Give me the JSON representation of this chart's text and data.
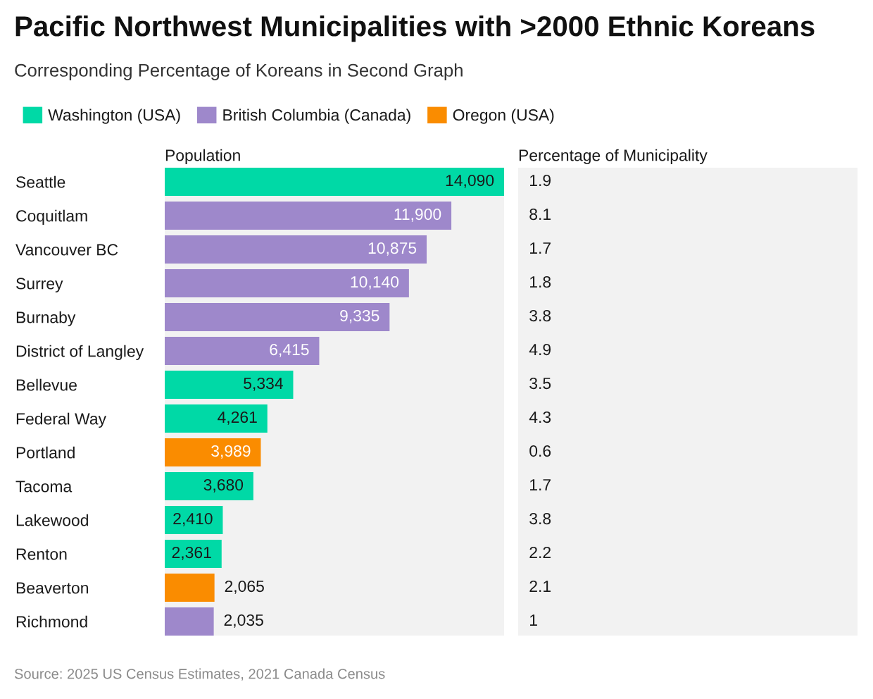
{
  "chart_data": [
    {
      "type": "bar",
      "orientation": "horizontal",
      "title": "Pacific Northwest Municipalities with >2000 Ethnic Koreans",
      "subtitle": "Corresponding Percentage of Koreans in Second Graph",
      "xlabel": "Population",
      "categories": [
        "Seattle",
        "Coquitlam",
        "Vancouver BC",
        "Surrey",
        "Burnaby",
        "District of Langley",
        "Bellevue",
        "Federal Way",
        "Portland",
        "Tacoma",
        "Lakewood",
        "Renton",
        "Beaverton",
        "Richmond"
      ],
      "series": [
        {
          "name": "Washington (USA)",
          "color": "#00d9a6",
          "values": [
            14090,
            null,
            null,
            null,
            null,
            null,
            5334,
            4261,
            null,
            3680,
            2410,
            2361,
            null,
            null
          ],
          "value_labels": [
            "14,090",
            null,
            null,
            null,
            null,
            null,
            "5,334",
            "4,261",
            null,
            "3,680",
            "2,410",
            "2,361",
            null,
            null
          ]
        },
        {
          "name": "British Columbia (Canada)",
          "color": "#9e88cb",
          "values": [
            null,
            11900,
            10875,
            10140,
            9335,
            6415,
            null,
            null,
            null,
            null,
            null,
            null,
            null,
            2035
          ],
          "value_labels": [
            null,
            "11,900",
            "10,875",
            "10,140",
            "9,335",
            "6,415",
            null,
            null,
            null,
            null,
            null,
            null,
            null,
            "2,035"
          ]
        },
        {
          "name": "Oregon (USA)",
          "color": "#fa8c00",
          "values": [
            null,
            null,
            null,
            null,
            null,
            null,
            null,
            null,
            3989,
            null,
            null,
            null,
            2065,
            null
          ],
          "value_labels": [
            null,
            null,
            null,
            null,
            null,
            null,
            null,
            null,
            "3,989",
            null,
            null,
            null,
            "2,065",
            null
          ]
        }
      ],
      "legend": "top",
      "tick_labels": "y",
      "annotations": [
        "Source: 2025 US Census Estimates, 2021 Canada Census"
      ]
    },
    {
      "type": "other",
      "xlabel": "Percentage of Municipality",
      "values": [
        1.9,
        8.1,
        1.7,
        1.8,
        3.8,
        4.9,
        3.5,
        4.3,
        0.6,
        1.7,
        3.8,
        2.2,
        2.1,
        1
      ],
      "data_labels": true
    }
  ]
}
